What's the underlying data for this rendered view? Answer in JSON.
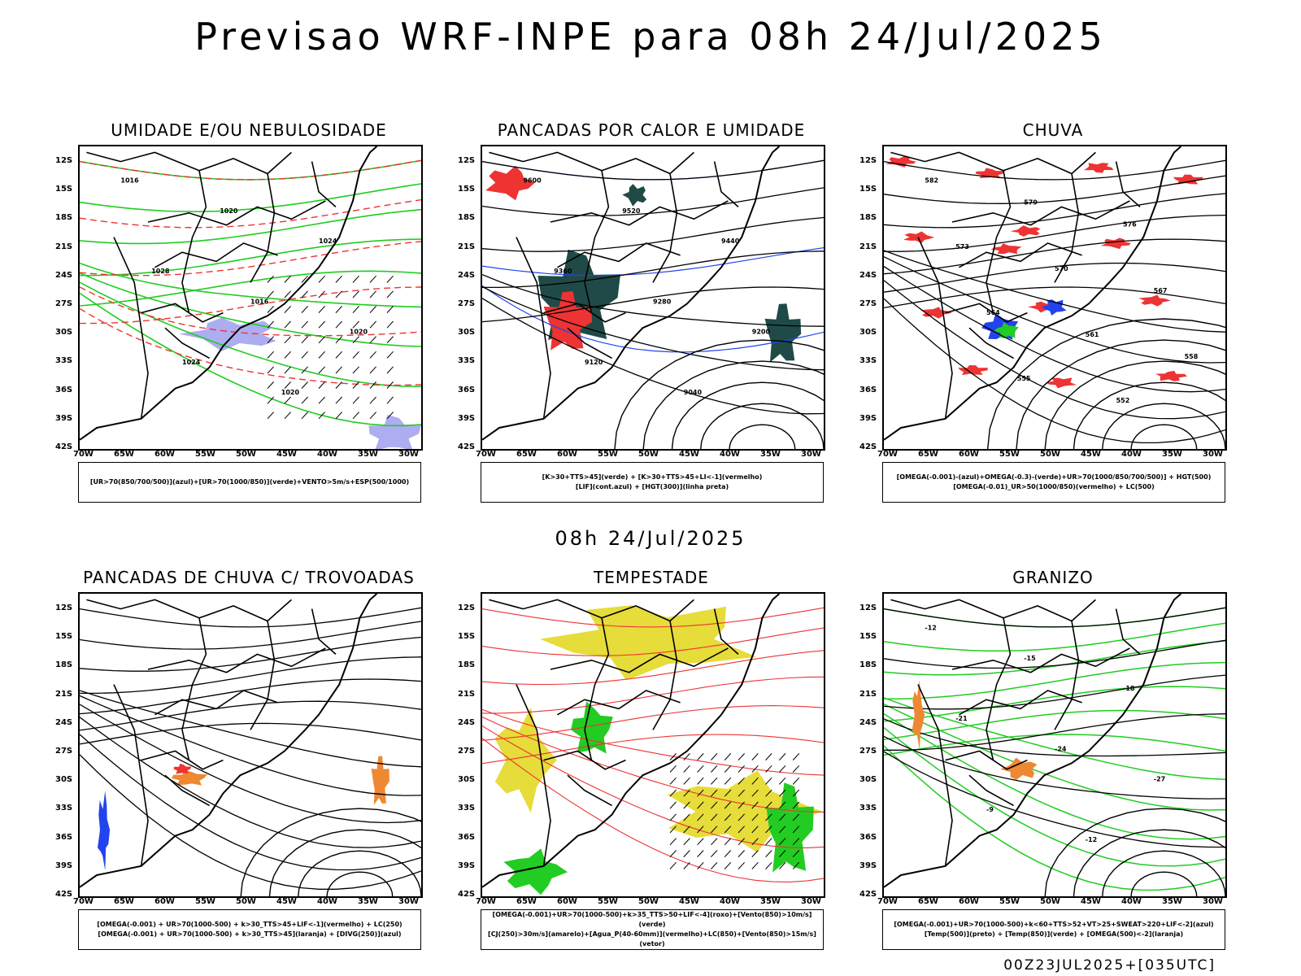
{
  "title": "Previsao WRF-INPE  para 08h 24/Jul/2025",
  "subtitle": "08h 24/Jul/2025",
  "footer": "00Z23JUL2025+[035UTC]",
  "axes": {
    "lat_ticks": [
      "12S",
      "15S",
      "18S",
      "21S",
      "24S",
      "27S",
      "30S",
      "33S",
      "36S",
      "39S",
      "42S"
    ],
    "lon_ticks": [
      "70W",
      "65W",
      "60W",
      "55W",
      "50W",
      "45W",
      "40W",
      "35W",
      "30W"
    ]
  },
  "colors": {
    "green": "#22cc22",
    "red": "#ee3333",
    "blue": "#2244ee",
    "lavender": "#9999ee",
    "darkteal": "#1f4a47",
    "yellow": "#e6dc3a",
    "orange": "#ee8833",
    "purple": "#aa33aa"
  },
  "panels": [
    {
      "id": "umidade",
      "title": "UMIDADE E/OU NEBULOSIDADE",
      "legend": [
        "[UR>70(850/700/500)](azul)+[UR>70(1000/850)](verde)+VENTO>5m/s+ESP(500/1000)"
      ],
      "labels": [
        "1016",
        "1020",
        "1024",
        "1028",
        "1016",
        "1020",
        "1024",
        "1020"
      ]
    },
    {
      "id": "pancadas-calor",
      "title": "PANCADAS POR CALOR E UMIDADE",
      "legend": [
        "[K>30+TTS>45](verde) + [K>30+TTS>45+LI<-1](vermelho)",
        "[LIF](cont.azul) + [HGT(300)](linha preta)"
      ],
      "labels": [
        "9600",
        "9520",
        "9440",
        "9360",
        "9280",
        "9200",
        "9120",
        "9040"
      ]
    },
    {
      "id": "chuva",
      "title": "CHUVA",
      "legend": [
        "[OMEGA(-0.001)-(azul)+OMEGA(-0.3)-(verde)+UR>70(1000/850/700/500)] + HGT(500)",
        "[OMEGA(-0.01)_UR>50(1000/850)(vermelho) + LC(500)"
      ],
      "labels": [
        "582",
        "579",
        "576",
        "573",
        "570",
        "567",
        "564",
        "561",
        "558",
        "555",
        "552"
      ]
    },
    {
      "id": "trovoadas",
      "title": "PANCADAS DE CHUVA C/ TROVOADAS",
      "legend": [
        "[OMEGA(-0.001) + UR>70(1000-500) + k>30_TTS>45+LIF<-1](vermelho) + LC(250)",
        "[OMEGA(-0.001) + UR>70(1000-500) + k>30_TTS>45](laranja) + [DIVG(250)](azul)"
      ],
      "labels": []
    },
    {
      "id": "tempestade",
      "title": "TEMPESTADE",
      "legend": [
        "[OMEGA(-0.001)+UR>70(1000-500)+k>35_TTS>50+LIF<-4](roxo)+[Vento(850)>10m/s](verde)",
        "[CJ(250)>30m/s](amarelo)+[Agua_P(40-60mm)](vermelho)+LC(850)+[Vento(850)>15m/s](vetor)"
      ],
      "labels": []
    },
    {
      "id": "granizo",
      "title": "GRANIZO",
      "legend": [
        "[OMEGA(-0.001)+UR>70(1000-500)+k<60+TTS>52+VT>25+SWEAT>220+LIF<-2](azul)",
        "[Temp(500)](preto) + [Temp(850)](verde) + [OMEGA(500)<-2](laranja)"
      ],
      "labels": [
        "-12",
        "-15",
        "-18",
        "-21",
        "-24",
        "-27",
        "-9",
        "-12"
      ]
    }
  ]
}
